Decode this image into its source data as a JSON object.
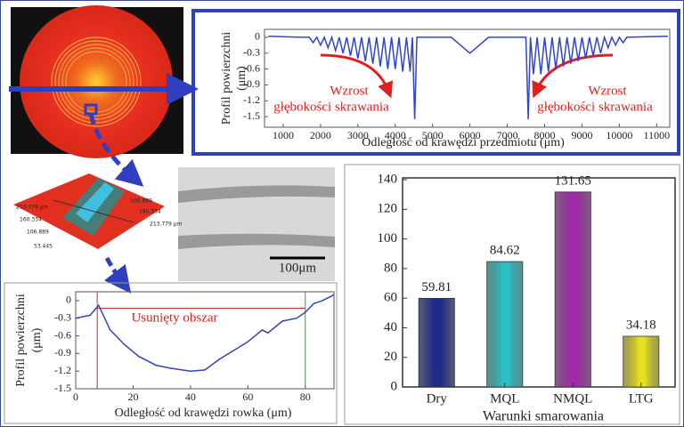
{
  "chart_data": [
    {
      "type": "line",
      "ylabel": [
        "Profil powierzchni",
        "(μm)"
      ],
      "xlabel": "Odległość od krawędzi przedmiotu (μm)",
      "annotations": [
        "Wzrost",
        "głębokości skrawania",
        "Wzrost",
        "głębokości skrawania"
      ],
      "x": [
        600,
        1500,
        1700,
        1800,
        1900,
        2000,
        2100,
        2200,
        2300,
        2400,
        2500,
        2600,
        2700,
        2800,
        2900,
        3000,
        3100,
        3200,
        3300,
        3400,
        3500,
        3600,
        3700,
        3800,
        3900,
        4000,
        4100,
        4200,
        4300,
        4400,
        4460,
        4520,
        4580,
        5500,
        6000,
        6500,
        7500,
        7560,
        7620,
        7700,
        7800,
        7900,
        8000,
        8100,
        8200,
        8300,
        8400,
        8500,
        8600,
        8700,
        8800,
        8900,
        9000,
        9100,
        9200,
        9300,
        9400,
        9500,
        9600,
        9700,
        9800,
        9900,
        10000,
        10100,
        10200,
        11300
      ],
      "values": [
        0.02,
        0,
        0,
        -0.1,
        0,
        -0.15,
        0,
        -0.2,
        0,
        -0.25,
        0,
        -0.3,
        0,
        -0.35,
        0,
        -0.4,
        0,
        -0.45,
        0,
        -0.5,
        0,
        -0.55,
        0,
        -0.6,
        0,
        -0.6,
        0,
        -0.65,
        0,
        -0.65,
        0,
        -1.55,
        0,
        0,
        -0.3,
        0,
        0,
        -1.55,
        0,
        -0.7,
        0,
        -0.7,
        0,
        -0.65,
        0,
        -0.6,
        0,
        -0.55,
        0,
        -0.5,
        0,
        -0.45,
        0,
        -0.4,
        0,
        -0.35,
        0,
        -0.3,
        0,
        -0.2,
        0,
        -0.15,
        0,
        -0.1,
        0,
        0.02
      ],
      "color": "#3344cc",
      "xlim": [
        500,
        11350
      ],
      "xticks": [
        1000,
        2000,
        3000,
        4000,
        5000,
        6000,
        7000,
        8000,
        9000,
        10000,
        11000
      ],
      "ylim": [
        -1.7,
        0.15
      ],
      "yticks": [
        0,
        -0.3,
        -0.6,
        -0.9,
        -1.2,
        -1.5
      ]
    },
    {
      "type": "line",
      "ylabel": [
        "Profil powierzchni",
        "(μm)"
      ],
      "xlabel": "Odległość od krawędzi rowka (μm)",
      "annotations": [
        "Usunięty obszar"
      ],
      "x": [
        0,
        5,
        8,
        12,
        17,
        22,
        28,
        33,
        40,
        45,
        50,
        55,
        60,
        65,
        67,
        72,
        77,
        80,
        83,
        86,
        90
      ],
      "values": [
        -0.3,
        -0.25,
        -0.08,
        -0.5,
        -0.75,
        -0.95,
        -1.1,
        -1.15,
        -1.2,
        -1.18,
        -1.0,
        -0.85,
        -0.7,
        -0.5,
        -0.55,
        -0.35,
        -0.3,
        -0.2,
        -0.05,
        0,
        0.1
      ],
      "color": "#3344bb",
      "vlines": [
        7.5,
        80
      ],
      "hline": -0.13,
      "xlim": [
        0,
        90
      ],
      "xticks": [
        0,
        20,
        40,
        60,
        80
      ],
      "ylim": [
        -1.5,
        0.15
      ],
      "yticks": [
        0,
        -0.3,
        -0.6,
        -0.9,
        -1.2,
        -1.5
      ]
    },
    {
      "type": "bar",
      "xlabel": "Warunki smarowania",
      "categories": [
        "Dry",
        "MQL",
        "NMQL",
        "LTG"
      ],
      "values": [
        59.81,
        84.62,
        131.65,
        34.18
      ],
      "colors": [
        "#1e2a8a",
        "#2cc0c4",
        "#a02aa8",
        "#e6e020"
      ],
      "ylim": [
        0,
        140
      ],
      "yticks": [
        0,
        20,
        40,
        60,
        80,
        100,
        120,
        140
      ]
    }
  ],
  "images": {
    "surface_labels": [
      "213.779 μm",
      "160.334",
      "106.889",
      "53.445",
      "213.779 μm",
      "160.334",
      "106.889"
    ],
    "scale_bar": "100μm"
  }
}
